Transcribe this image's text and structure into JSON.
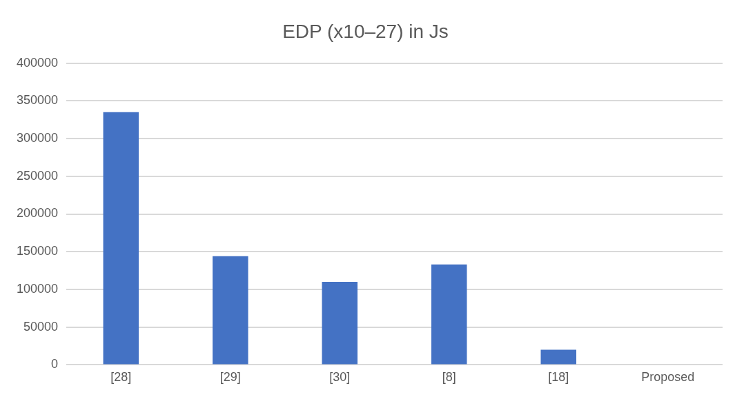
{
  "chart_data": {
    "type": "bar",
    "title": "EDP (x10–27) in Js",
    "categories": [
      "[28]",
      "[29]",
      "[30]",
      "[8]",
      "[18]",
      "Proposed"
    ],
    "values": [
      335000,
      144000,
      110000,
      133000,
      20000,
      0
    ],
    "color": "#4472c4",
    "ylim": [
      0,
      400000
    ],
    "yticks": [
      0,
      50000,
      100000,
      150000,
      200000,
      250000,
      300000,
      350000,
      400000
    ],
    "grid": "y",
    "legend": false
  }
}
